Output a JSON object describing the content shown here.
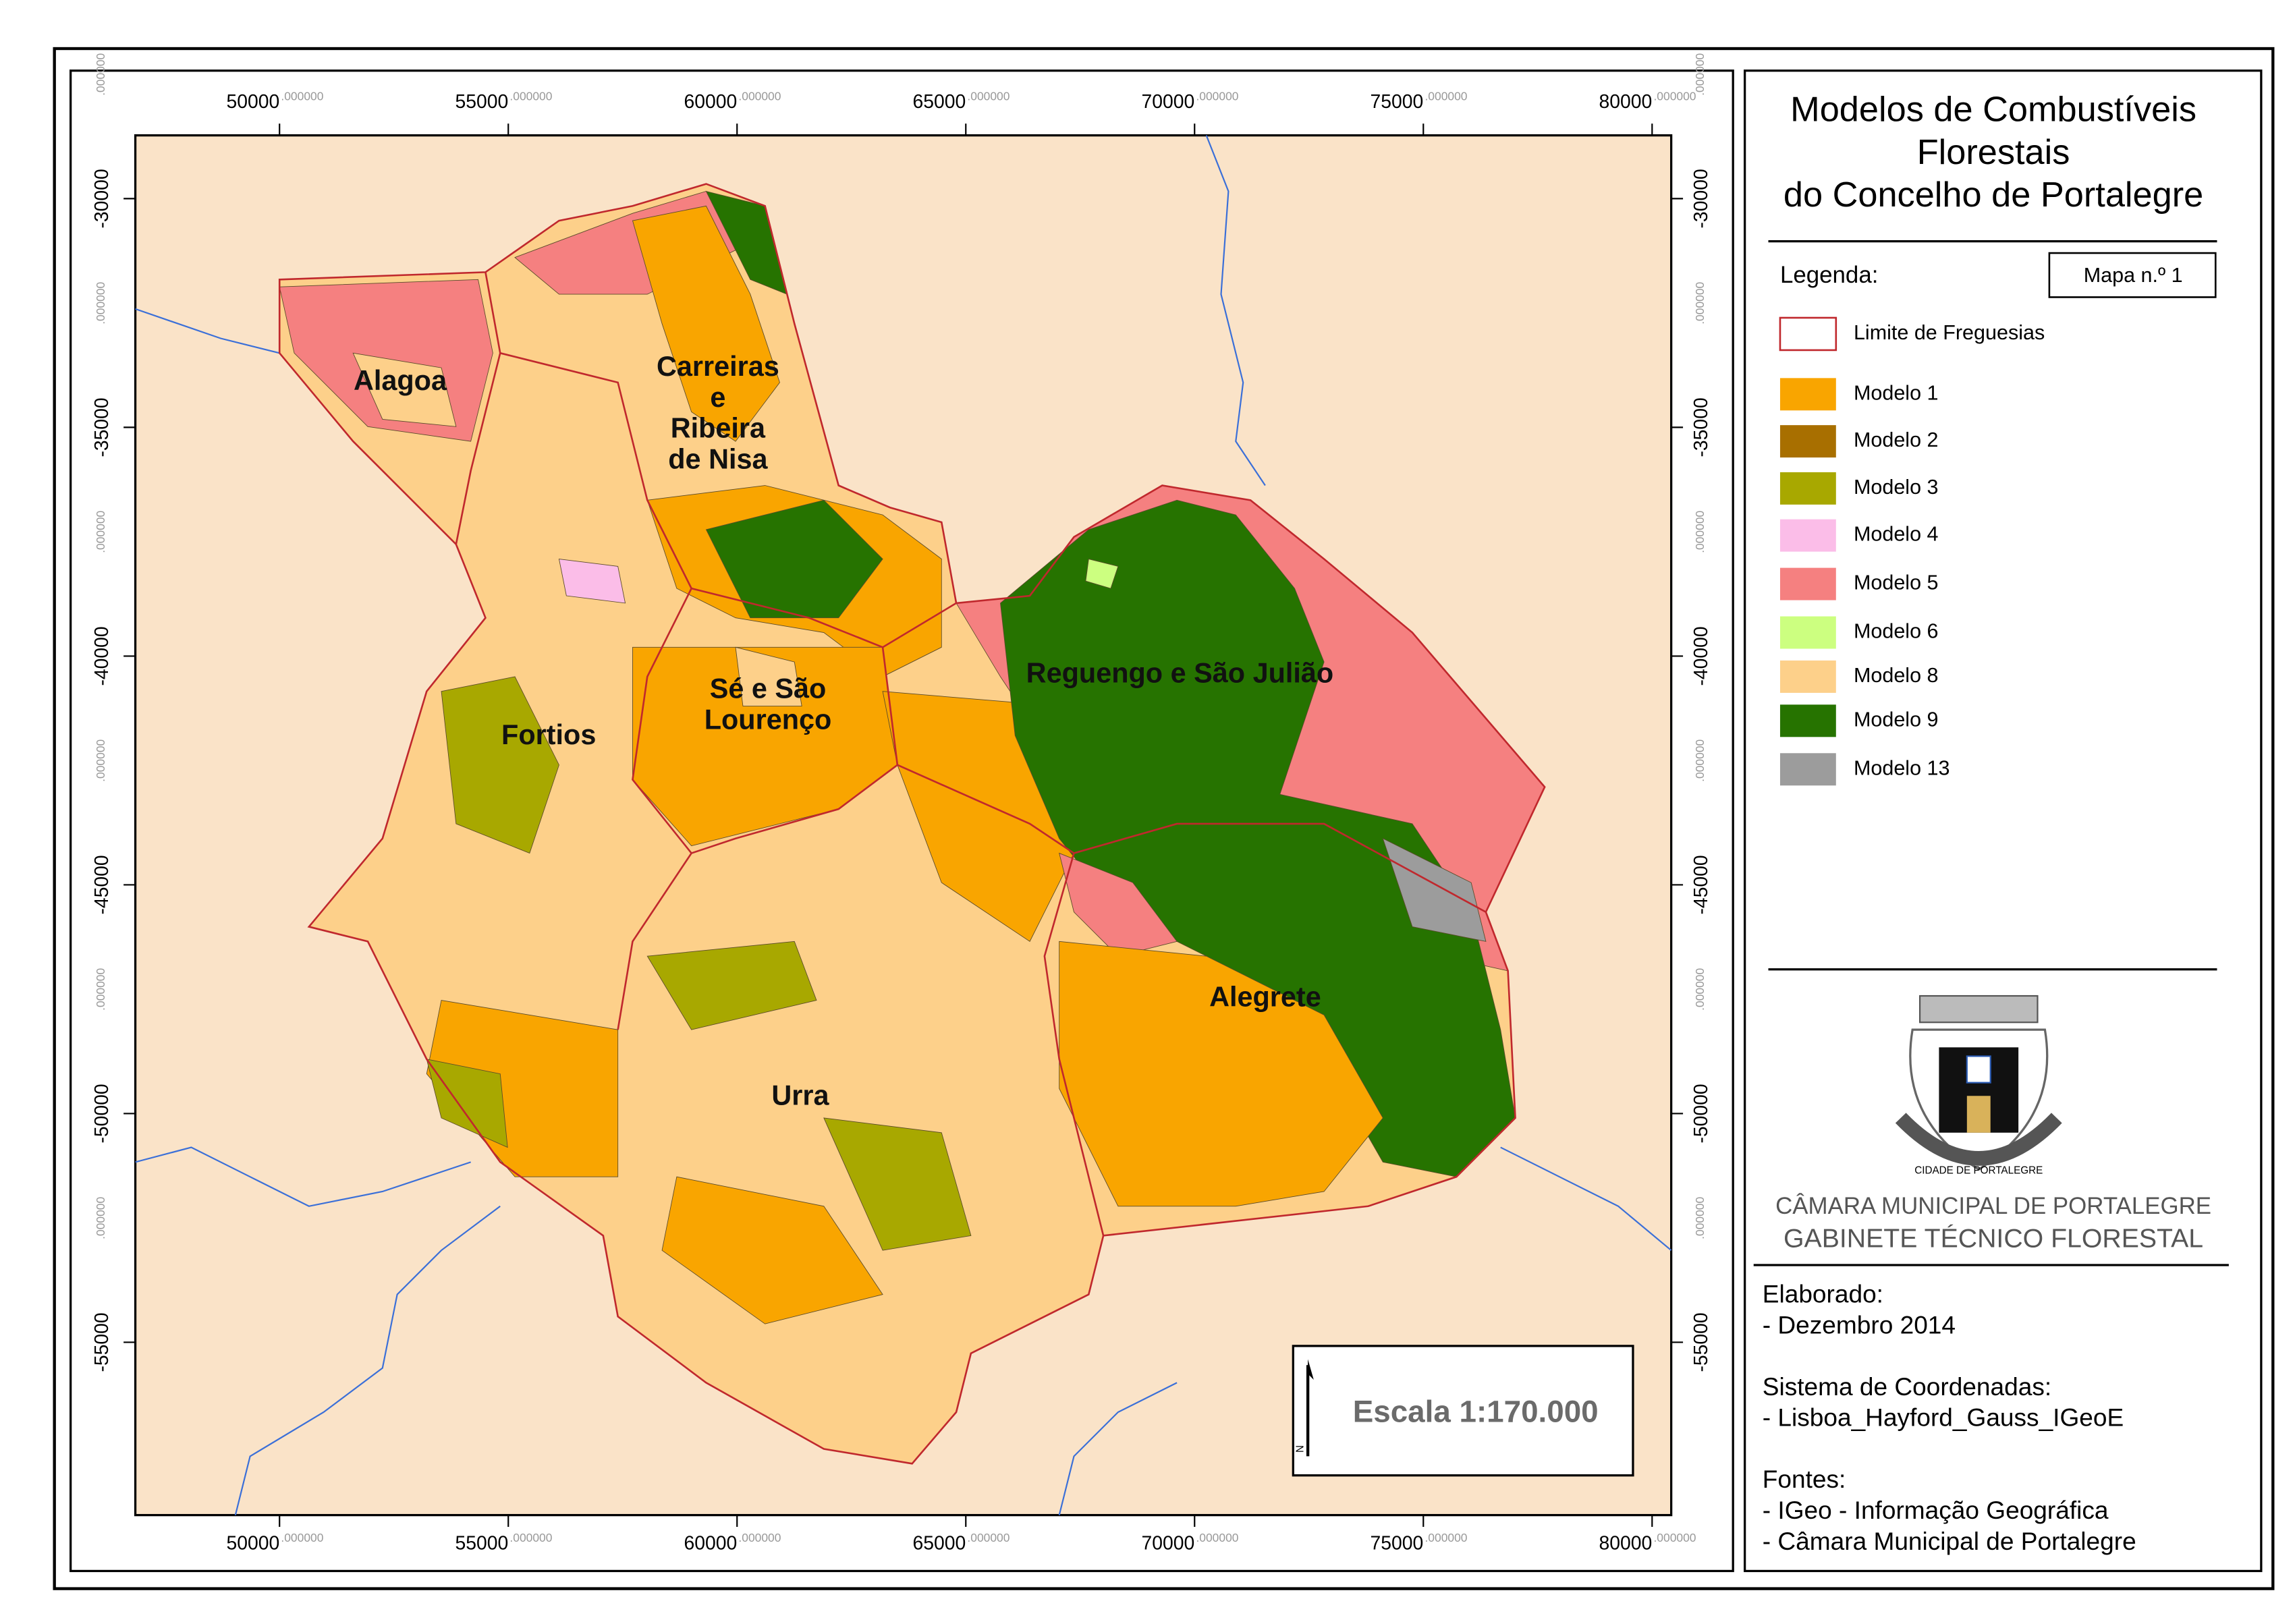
{
  "title_lines": [
    "Modelos de Combustíveis",
    "Florestais",
    "do Concelho de Portalegre"
  ],
  "legend": {
    "heading": "Legenda:",
    "map_number": "Mapa n.º 1",
    "items": [
      {
        "label": "Limite de Freguesias",
        "color": "#ffffff",
        "outline": "#c0282d"
      },
      {
        "label": "Modelo 1",
        "color": "#f9a500"
      },
      {
        "label": "Modelo 2",
        "color": "#a86f00"
      },
      {
        "label": "Modelo 3",
        "color": "#a8a800"
      },
      {
        "label": "Modelo 4",
        "color": "#fbbde8"
      },
      {
        "label": "Modelo 5",
        "color": "#f58080"
      },
      {
        "label": "Modelo 6",
        "color": "#ccff80"
      },
      {
        "label": "Modelo 8",
        "color": "#fdd08a"
      },
      {
        "label": "Modelo 9",
        "color": "#267300"
      },
      {
        "label": "Modelo 13",
        "color": "#9c9c9c"
      }
    ]
  },
  "grid": {
    "x_labels": [
      "50000",
      "55000",
      "60000",
      "65000",
      "70000",
      "75000",
      "80000"
    ],
    "y_labels": [
      "-30000",
      "-35000",
      "-40000",
      "-45000",
      "-50000",
      "-55000"
    ],
    "decimals": ".000000"
  },
  "parish_labels": [
    {
      "lines": [
        "Alagoa"
      ]
    },
    {
      "lines": [
        "Carreiras",
        "e",
        "Ribeira",
        "de Nisa"
      ]
    },
    {
      "lines": [
        "Fortios"
      ]
    },
    {
      "lines": [
        "Sé e São",
        "Lourenço"
      ]
    },
    {
      "lines": [
        "Reguengo e São Julião"
      ]
    },
    {
      "lines": [
        "Alegrete"
      ]
    },
    {
      "lines": [
        "Urra"
      ]
    }
  ],
  "scale": "Escala 1:170.000",
  "north": "N",
  "institution": [
    "CÂMARA MUNICIPAL DE PORTALEGRE",
    "GABINETE TÉCNICO FLORESTAL"
  ],
  "emblem_text": "CIDADE DE PORTALEGRE",
  "notes": [
    {
      "heading": "Elaborado:",
      "lines": [
        "- Dezembro 2014"
      ]
    },
    {
      "heading": "Sistema de Coordenadas:",
      "lines": [
        "- Lisboa_Hayford_Gauss_IGeoE"
      ]
    },
    {
      "heading": "Fontes:",
      "lines": [
        "- IGeo - Informação Geográfica",
        "- Câmara Municipal de Portalegre"
      ]
    }
  ]
}
